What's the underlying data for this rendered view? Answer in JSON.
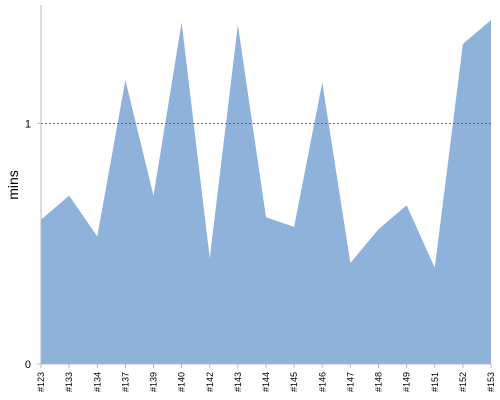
{
  "chart_data": {
    "type": "area",
    "title": "",
    "xlabel": "",
    "ylabel": "mins",
    "categories": [
      "#123",
      "#133",
      "#134",
      "#137",
      "#139",
      "#140",
      "#142",
      "#143",
      "#144",
      "#145",
      "#146",
      "#147",
      "#148",
      "#149",
      "#151",
      "#152",
      "#153"
    ],
    "values": [
      0.6,
      0.7,
      0.53,
      1.18,
      0.7,
      1.42,
      0.44,
      1.41,
      0.61,
      0.57,
      1.17,
      0.42,
      0.56,
      0.66,
      0.4,
      1.33,
      1.43
    ],
    "ylim": [
      0,
      1.43
    ],
    "y_ticks": [
      0,
      1
    ],
    "reference_line": 1,
    "grid": false,
    "legend": "none",
    "colors": {
      "area_fill": "#8fb2da",
      "reference_line": "#666666",
      "axis": "#b8b8b8"
    }
  }
}
